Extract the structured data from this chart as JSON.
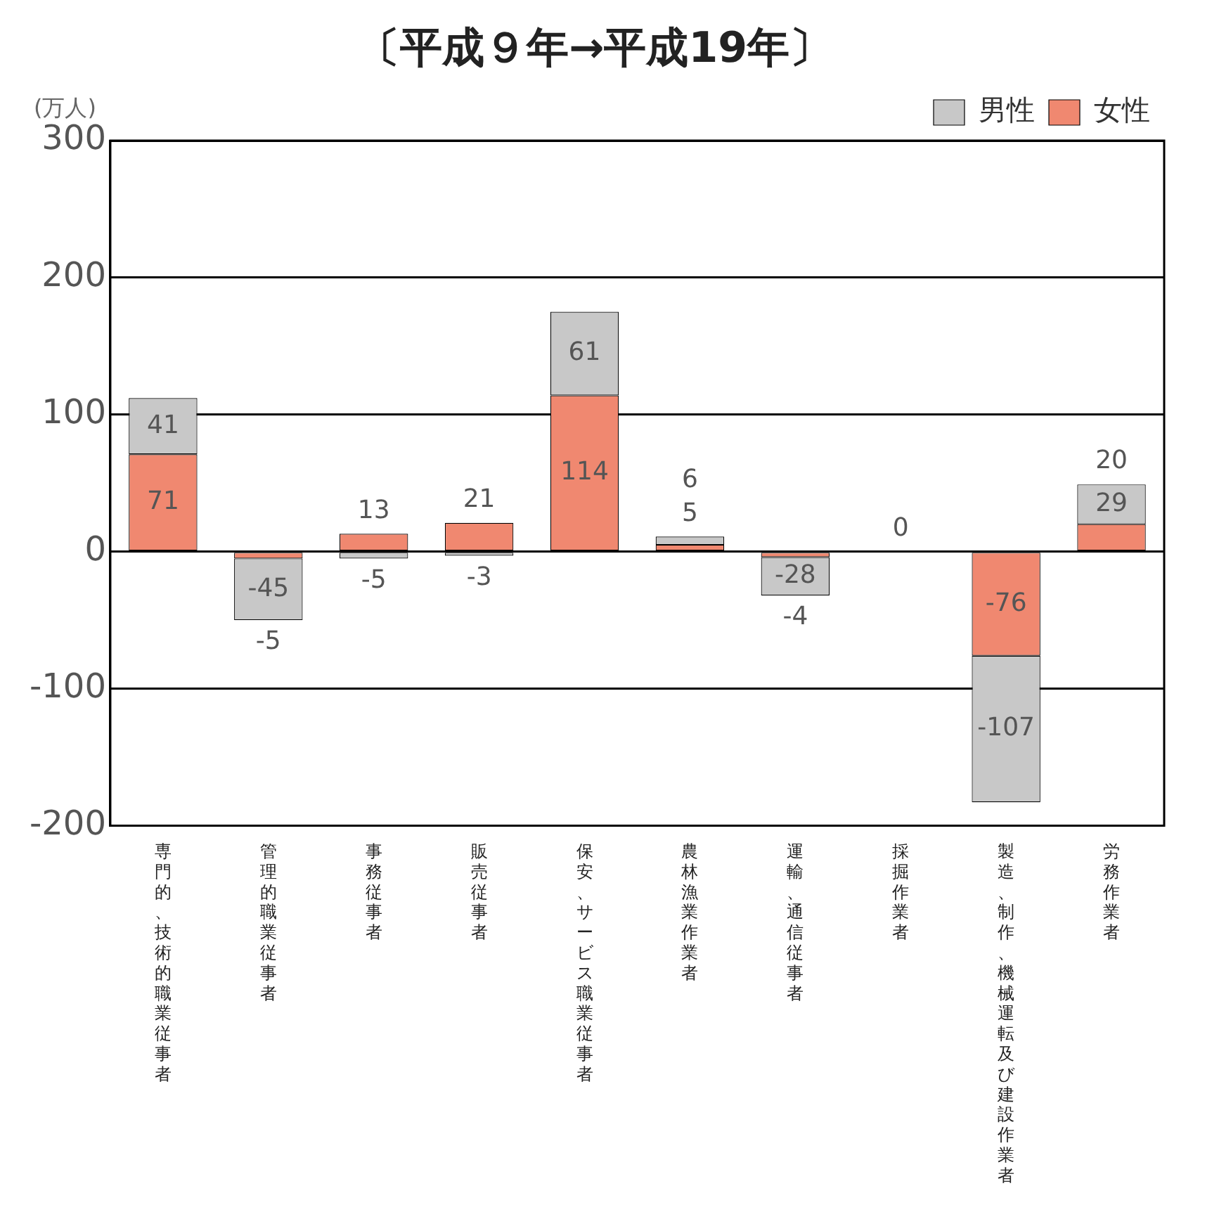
{
  "chart_data": {
    "type": "bar",
    "title": "〔平成９年→平成19年〕",
    "ylabel": "(万人)",
    "categories": [
      "専門的、技術的職業従事者",
      "管理的職業従事者",
      "事務従事者",
      "販売従事者",
      "保安、サービス職業従事者",
      "農林漁業作業者",
      "運輸、通信従事者",
      "採掘作業者",
      "製造、制作、機械運転及び建設作業者",
      "労務作業者"
    ],
    "stacked": true,
    "series": [
      {
        "name": "女性",
        "color": "#f08870",
        "values": [
          71,
          -5,
          13,
          21,
          114,
          5,
          -4,
          0,
          -76,
          20
        ],
        "value_labels": [
          "71",
          "-5",
          "13",
          "21",
          "114",
          "5",
          "-4",
          null,
          "-76",
          "20"
        ]
      },
      {
        "name": "男性",
        "color": "#c8c8c8",
        "values": [
          41,
          -45,
          -5,
          -3,
          61,
          6,
          -28,
          0,
          -107,
          29
        ],
        "value_labels": [
          "41",
          "-45",
          "-5",
          "-3",
          "61",
          "6",
          "-28",
          "0",
          "-107",
          "29"
        ]
      }
    ],
    "ylim": [
      -200,
      300
    ],
    "yticks": [
      -200,
      -100,
      0,
      100,
      200,
      300
    ],
    "grid": "y",
    "legend": "top right"
  }
}
